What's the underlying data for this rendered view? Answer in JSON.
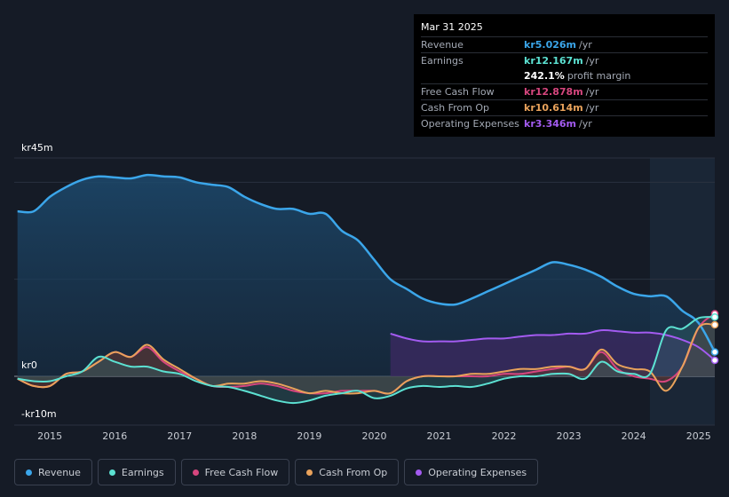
{
  "tooltip": {
    "date": "Mar 31 2025",
    "rows": [
      {
        "label": "Revenue",
        "value": "kr5.026m",
        "unit": "/yr",
        "color": "#3ba6ea"
      },
      {
        "label": "Earnings",
        "value": "kr12.167m",
        "unit": "/yr",
        "color": "#5ce1d2"
      },
      {
        "label": "",
        "value": "242.1%",
        "unit": "profit margin",
        "color": "#ffffff"
      },
      {
        "label": "Free Cash Flow",
        "value": "kr12.878m",
        "unit": "/yr",
        "color": "#d6467e"
      },
      {
        "label": "Cash From Op",
        "value": "kr10.614m",
        "unit": "/yr",
        "color": "#e9a25b"
      },
      {
        "label": "Operating Expenses",
        "value": "kr3.346m",
        "unit": "/yr",
        "color": "#a35bf0"
      }
    ]
  },
  "legend": [
    {
      "label": "Revenue",
      "color": "#3ba6ea"
    },
    {
      "label": "Earnings",
      "color": "#5ce1d2"
    },
    {
      "label": "Free Cash Flow",
      "color": "#d6467e"
    },
    {
      "label": "Cash From Op",
      "color": "#e9a25b"
    },
    {
      "label": "Operating Expenses",
      "color": "#a35bf0"
    }
  ],
  "chart_data": {
    "type": "area",
    "ylim": [
      -10,
      45
    ],
    "ytick_labels": {
      "top": "kr45m",
      "zero": "kr0",
      "bottom": "-kr10m"
    },
    "xlim": [
      2014.45,
      2025.25
    ],
    "x_ticks": [
      2015,
      2016,
      2017,
      2018,
      2019,
      2020,
      2021,
      2022,
      2023,
      2024,
      2025
    ],
    "x_tick_labels": [
      "2015",
      "2016",
      "2017",
      "2018",
      "2019",
      "2020",
      "2021",
      "2022",
      "2023",
      "2024",
      "2025"
    ],
    "highlight_start": 2024.25,
    "series": [
      {
        "name": "Revenue",
        "color": "#3ba6ea",
        "x": [
          2014.5,
          2014.75,
          2015.0,
          2015.25,
          2015.5,
          2015.75,
          2016.0,
          2016.25,
          2016.5,
          2016.75,
          2017.0,
          2017.25,
          2017.5,
          2017.75,
          2018.0,
          2018.25,
          2018.5,
          2018.75,
          2019.0,
          2019.25,
          2019.5,
          2019.75,
          2020.0,
          2020.25,
          2020.5,
          2020.75,
          2021.0,
          2021.25,
          2021.5,
          2021.75,
          2022.0,
          2022.25,
          2022.5,
          2022.75,
          2023.0,
          2023.25,
          2023.5,
          2023.75,
          2024.0,
          2024.25,
          2024.5,
          2024.75,
          2025.0,
          2025.25
        ],
        "values": [
          34,
          34,
          37,
          39,
          40.5,
          41.2,
          41,
          40.8,
          41.5,
          41.2,
          41,
          40,
          39.5,
          39,
          37,
          35.5,
          34.5,
          34.5,
          33.5,
          33.5,
          30,
          28,
          24,
          20,
          18,
          16,
          15,
          14.8,
          16,
          17.5,
          19,
          20.5,
          22,
          23.5,
          23,
          22,
          20.5,
          18.5,
          17,
          16.5,
          16.5,
          13.5,
          11,
          5
        ]
      },
      {
        "name": "Earnings",
        "color": "#5ce1d2",
        "x": [
          2014.5,
          2014.75,
          2015.0,
          2015.25,
          2015.5,
          2015.75,
          2016.0,
          2016.25,
          2016.5,
          2016.75,
          2017.0,
          2017.25,
          2017.5,
          2017.75,
          2018.0,
          2018.25,
          2018.5,
          2018.75,
          2019.0,
          2019.25,
          2019.5,
          2019.75,
          2020.0,
          2020.25,
          2020.5,
          2020.75,
          2021.0,
          2021.25,
          2021.5,
          2021.75,
          2022.0,
          2022.25,
          2022.5,
          2022.75,
          2023.0,
          2023.25,
          2023.5,
          2023.75,
          2024.0,
          2024.25,
          2024.5,
          2024.75,
          2025.0,
          2025.25
        ],
        "values": [
          -0.5,
          -1,
          -1,
          0,
          1,
          4,
          3,
          2,
          2,
          1,
          0.5,
          -1,
          -2,
          -2.2,
          -3,
          -4,
          -5,
          -5.5,
          -5,
          -4,
          -3.5,
          -3,
          -4.5,
          -4,
          -2.5,
          -2,
          -2.2,
          -2,
          -2.2,
          -1.5,
          -0.5,
          0,
          0,
          0.5,
          0.5,
          -0.5,
          3,
          1,
          0.5,
          0.5,
          9.5,
          9.8,
          12,
          12.2
        ]
      },
      {
        "name": "Free Cash Flow",
        "color": "#d6467e",
        "x": [
          2014.5,
          2014.75,
          2015.0,
          2015.25,
          2015.5,
          2015.75,
          2016.0,
          2016.25,
          2016.5,
          2016.75,
          2017.0,
          2017.25,
          2017.5,
          2017.75,
          2018.0,
          2018.25,
          2018.5,
          2018.75,
          2019.0,
          2019.25,
          2019.5,
          2019.75,
          2020.0,
          2020.25,
          2020.5,
          2020.75,
          2021.0,
          2021.25,
          2021.5,
          2021.75,
          2022.0,
          2022.25,
          2022.5,
          2022.75,
          2023.0,
          2023.25,
          2023.5,
          2023.75,
          2024.0,
          2024.25,
          2024.5,
          2024.75,
          2025.0,
          2025.25
        ],
        "values": [
          -0.5,
          -2,
          -2,
          0.5,
          1,
          3,
          5,
          4,
          6,
          3,
          1,
          -0.5,
          -2,
          -2.2,
          -2,
          -1.5,
          -2,
          -3,
          -3.5,
          -3.5,
          -3,
          -3,
          -3,
          -3.5,
          -1,
          0,
          0,
          0,
          0,
          0,
          0.5,
          0.5,
          1,
          1.5,
          2,
          1.5,
          5,
          1.5,
          0,
          -0.5,
          -1,
          2,
          10,
          12.9
        ]
      },
      {
        "name": "Cash From Op",
        "color": "#e9a25b",
        "x": [
          2014.5,
          2014.75,
          2015.0,
          2015.25,
          2015.5,
          2015.75,
          2016.0,
          2016.25,
          2016.5,
          2016.75,
          2017.0,
          2017.25,
          2017.5,
          2017.75,
          2018.0,
          2018.25,
          2018.5,
          2018.75,
          2019.0,
          2019.25,
          2019.5,
          2019.75,
          2020.0,
          2020.25,
          2020.5,
          2020.75,
          2021.0,
          2021.25,
          2021.5,
          2021.75,
          2022.0,
          2022.25,
          2022.5,
          2022.75,
          2023.0,
          2023.25,
          2023.5,
          2023.75,
          2024.0,
          2024.25,
          2024.5,
          2024.75,
          2025.0,
          2025.25
        ],
        "values": [
          -0.5,
          -2,
          -2,
          0.5,
          1,
          3,
          5,
          4,
          6.5,
          3.5,
          1.5,
          -0.5,
          -2,
          -1.5,
          -1.5,
          -1,
          -1.5,
          -2.5,
          -3.5,
          -3,
          -3.5,
          -3.5,
          -3,
          -3.5,
          -1,
          0,
          0,
          0,
          0.5,
          0.5,
          1,
          1.5,
          1.5,
          2,
          2,
          1.5,
          5.5,
          2.5,
          1.5,
          1,
          -3,
          2,
          10,
          10.6
        ]
      },
      {
        "name": "Operating Expenses",
        "color": "#a35bf0",
        "x": [
          2020.25,
          2020.5,
          2020.75,
          2021.0,
          2021.25,
          2021.5,
          2021.75,
          2022.0,
          2022.25,
          2022.5,
          2022.75,
          2023.0,
          2023.25,
          2023.5,
          2023.75,
          2024.0,
          2024.25,
          2024.5,
          2024.75,
          2025.0,
          2025.25
        ],
        "values": [
          8.8,
          7.8,
          7.2,
          7.2,
          7.2,
          7.5,
          7.8,
          7.8,
          8.2,
          8.5,
          8.5,
          8.8,
          8.8,
          9.5,
          9.3,
          9,
          9,
          8.5,
          7.5,
          6,
          3.3
        ]
      }
    ]
  }
}
